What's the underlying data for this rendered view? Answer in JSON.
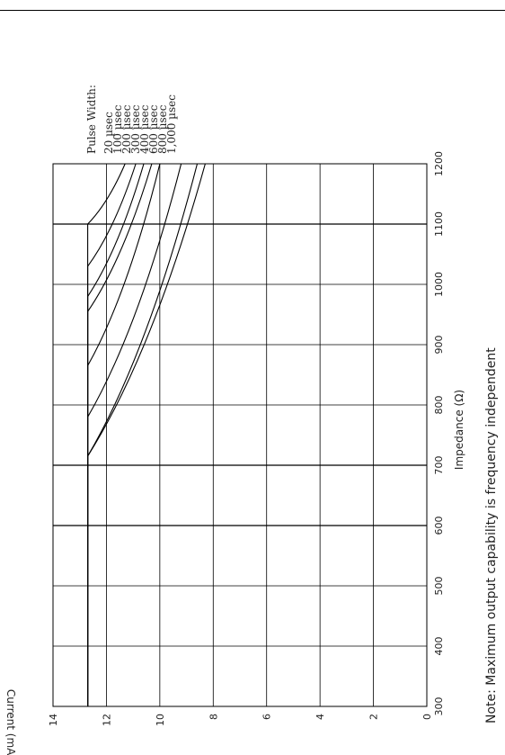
{
  "chart_data": {
    "type": "line",
    "orientation": "rotated-90-ccw",
    "xlabel": "Impedance (Ω)",
    "ylabel": "Current (mA)",
    "note": "Note: Maximum output capability is frequency independent",
    "legend_title": "Pulse Width:",
    "xlim": [
      300,
      1200
    ],
    "ylim": [
      0,
      14
    ],
    "x_ticks": [
      "300",
      "400",
      "500",
      "600",
      "700",
      "800",
      "900",
      "1000",
      "1100",
      "1200"
    ],
    "y_ticks": [
      "0",
      "2",
      "4",
      "6",
      "8",
      "10",
      "12",
      "14"
    ],
    "grid": true,
    "series": [
      {
        "name": "20 µsec",
        "x": [
          300,
          1100,
          1200
        ],
        "y": [
          12.7,
          12.7,
          11.3
        ]
      },
      {
        "name": "100 µsec",
        "x": [
          300,
          1030,
          1200
        ],
        "y": [
          12.7,
          12.7,
          10.9
        ]
      },
      {
        "name": "200 µsec",
        "x": [
          300,
          980,
          1200
        ],
        "y": [
          12.7,
          12.7,
          10.6
        ]
      },
      {
        "name": "300 µsec",
        "x": [
          300,
          955,
          1200
        ],
        "y": [
          12.7,
          12.7,
          10.3
        ]
      },
      {
        "name": "400 µsec",
        "x": [
          300,
          865,
          1200
        ],
        "y": [
          12.7,
          12.7,
          10.0
        ]
      },
      {
        "name": "600 µsec",
        "x": [
          300,
          780,
          1200
        ],
        "y": [
          12.7,
          12.7,
          9.2
        ]
      },
      {
        "name": "800 µsec",
        "x": [
          300,
          715,
          1200
        ],
        "y": [
          12.7,
          12.7,
          8.6
        ]
      },
      {
        "name": "1,000 µsec",
        "x": [
          300,
          715,
          1200
        ],
        "y": [
          12.7,
          12.7,
          8.3
        ]
      }
    ]
  }
}
